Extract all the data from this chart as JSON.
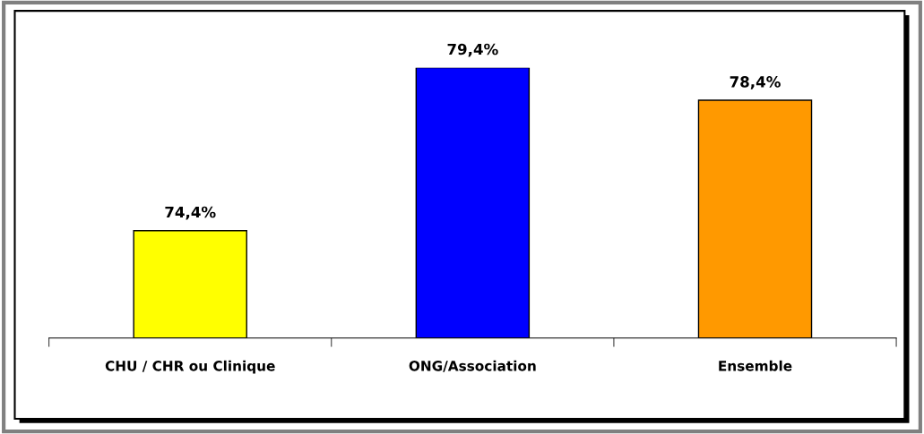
{
  "chart_data": {
    "type": "bar",
    "categories": [
      "CHU / CHR ou Clinique",
      "ONG/Association",
      "Ensemble"
    ],
    "values": [
      74.4,
      79.4,
      78.4
    ],
    "colors": [
      "#ffff00",
      "#0000ff",
      "#ff9900"
    ],
    "value_labels": [
      "74,4%",
      "79,4%",
      "78,4%"
    ],
    "ylim": [
      71.1,
      79.4
    ],
    "tick_labels": "x",
    "grid": false,
    "legend": false
  }
}
